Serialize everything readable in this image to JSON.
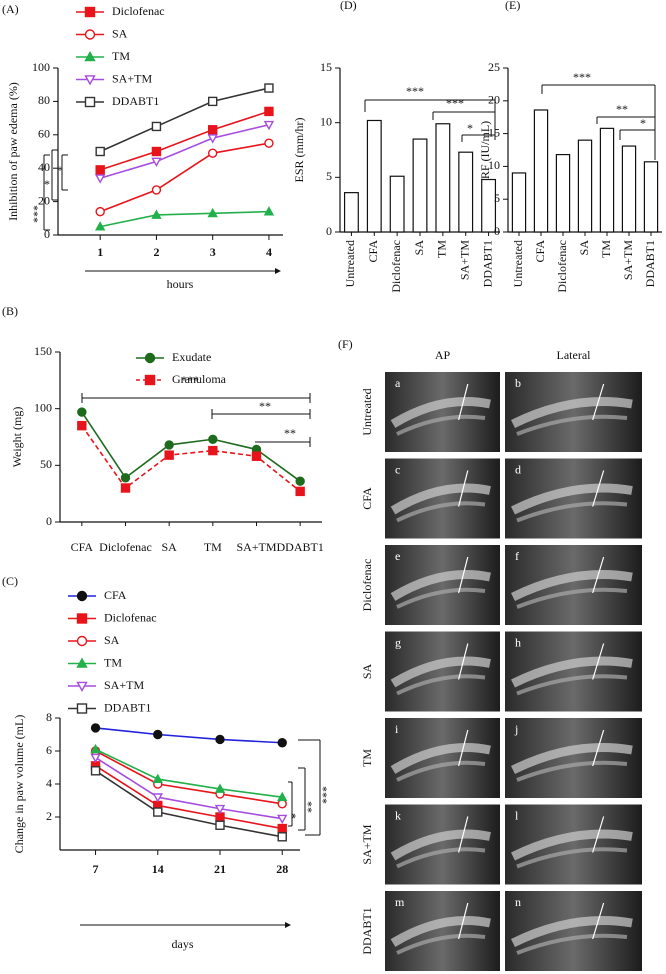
{
  "chart_data": [
    {
      "panel": "(A)",
      "type": "line",
      "ylabel": "Inhibition of paw edema (%)",
      "xlabel": "hours",
      "x": [
        1,
        2,
        3,
        4
      ],
      "xlim": [
        0.25,
        4.25
      ],
      "xticks": [
        1,
        2,
        3,
        4
      ],
      "ylim": [
        0,
        100
      ],
      "yticks": [
        0,
        20,
        40,
        60,
        80,
        100
      ],
      "series": [
        {
          "name": "Diclofenac",
          "color": "#e8141b",
          "marker": "square",
          "filled": true,
          "values": [
            39,
            50,
            63,
            74
          ]
        },
        {
          "name": "SA",
          "color": "#e8141b",
          "marker": "circle",
          "filled": false,
          "values": [
            14,
            27,
            49,
            55
          ]
        },
        {
          "name": "TM",
          "color": "#22b04b",
          "marker": "triangle",
          "filled": true,
          "values": [
            5,
            12,
            13,
            14
          ]
        },
        {
          "name": "SA+TM",
          "color": "#a64ce0",
          "marker": "down-triangle",
          "filled": false,
          "values": [
            34,
            44,
            58,
            66
          ]
        },
        {
          "name": "DDABT1",
          "color": "#333333",
          "marker": "square",
          "filled": false,
          "values": [
            50,
            65,
            80,
            88
          ]
        }
      ],
      "annotations": [
        "*",
        "*",
        "***"
      ]
    },
    {
      "panel": "(D)",
      "type": "bar",
      "ylabel": "ESR (mm/hr)",
      "categories": [
        "Untreated",
        "CFA",
        "Diclofenac",
        "SA",
        "TM",
        "SA+TM",
        "DDABT1"
      ],
      "values": [
        3.6,
        10.2,
        5.1,
        8.5,
        9.9,
        7.3,
        4.8
      ],
      "color": "#ffffff",
      "ylim": [
        0,
        15
      ],
      "yticks": [
        0,
        5,
        10,
        15
      ],
      "annotations": [
        "***",
        "***",
        "*"
      ]
    },
    {
      "panel": "(E)",
      "type": "bar",
      "ylabel": "RF (IU/mL)",
      "categories": [
        "Untreated",
        "CFA",
        "Diclofenac",
        "SA",
        "TM",
        "SA+TM",
        "DDABT1"
      ],
      "values": [
        9.0,
        18.6,
        11.8,
        14.0,
        15.8,
        13.1,
        10.7
      ],
      "color": "#ffffff",
      "ylim": [
        0,
        25
      ],
      "yticks": [
        0,
        5,
        10,
        15,
        20,
        25
      ],
      "annotations": [
        "***",
        "**",
        "*"
      ]
    },
    {
      "panel": "(B)",
      "type": "line",
      "ylabel": "Weight (mg)",
      "categories": [
        "CFA",
        "Diclofenac",
        "SA",
        "TM",
        "SA+TM",
        "DDABT1"
      ],
      "ylim": [
        0,
        150
      ],
      "yticks": [
        0,
        50,
        100,
        150
      ],
      "series": [
        {
          "name": "Exudate",
          "color": "#1e6b1e",
          "marker": "circle",
          "filled": true,
          "dash": false,
          "values": [
            97,
            39,
            68,
            73,
            64,
            36
          ]
        },
        {
          "name": "Granuloma",
          "color": "#e8141b",
          "marker": "square",
          "filled": true,
          "dash": true,
          "values": [
            85,
            30,
            59,
            63,
            58,
            27
          ]
        }
      ],
      "annotations": [
        "***",
        "**",
        "**"
      ]
    },
    {
      "panel": "(C)",
      "type": "line",
      "ylabel": "Change in paw volume (mL)",
      "xlabel": "days",
      "x": [
        7,
        14,
        21,
        28
      ],
      "xlim": [
        3,
        30
      ],
      "xticks": [
        7,
        14,
        21,
        28
      ],
      "ylim": [
        0,
        8
      ],
      "yticks": [
        2,
        4,
        6,
        8
      ],
      "series": [
        {
          "name": "CFA",
          "color": "#2222dd",
          "marker": "circle",
          "filled": true,
          "markerColor": "#111111",
          "values": [
            7.4,
            7.0,
            6.7,
            6.5
          ]
        },
        {
          "name": "Diclofenac",
          "color": "#e8141b",
          "marker": "square",
          "filled": true,
          "values": [
            5.1,
            2.7,
            2.0,
            1.3
          ]
        },
        {
          "name": "SA",
          "color": "#e8141b",
          "marker": "circle",
          "filled": false,
          "values": [
            6.0,
            4.0,
            3.4,
            2.8
          ]
        },
        {
          "name": "TM",
          "color": "#22b04b",
          "marker": "triangle",
          "filled": true,
          "values": [
            6.1,
            4.3,
            3.7,
            3.2
          ]
        },
        {
          "name": "SA+TM",
          "color": "#a64ce0",
          "marker": "down-triangle",
          "filled": false,
          "values": [
            5.6,
            3.2,
            2.5,
            1.9
          ]
        },
        {
          "name": "DDABT1",
          "color": "#333333",
          "marker": "square",
          "filled": false,
          "values": [
            4.8,
            2.3,
            1.5,
            0.8
          ]
        }
      ],
      "annotations": [
        "*",
        "**",
        "***"
      ]
    }
  ],
  "figure_f": {
    "panel": "(F)",
    "columns": [
      "AP",
      "Lateral"
    ],
    "rows": [
      {
        "label": "Untreated",
        "images": [
          "a",
          "b"
        ]
      },
      {
        "label": "CFA",
        "images": [
          "c",
          "d"
        ]
      },
      {
        "label": "Diclofenac",
        "images": [
          "e",
          "f"
        ]
      },
      {
        "label": "SA",
        "images": [
          "g",
          "h"
        ]
      },
      {
        "label": "TM",
        "images": [
          "i",
          "j"
        ]
      },
      {
        "label": "SA+TM",
        "images": [
          "k",
          "l"
        ]
      },
      {
        "label": "DDABT1",
        "images": [
          "m",
          "n"
        ]
      }
    ]
  }
}
